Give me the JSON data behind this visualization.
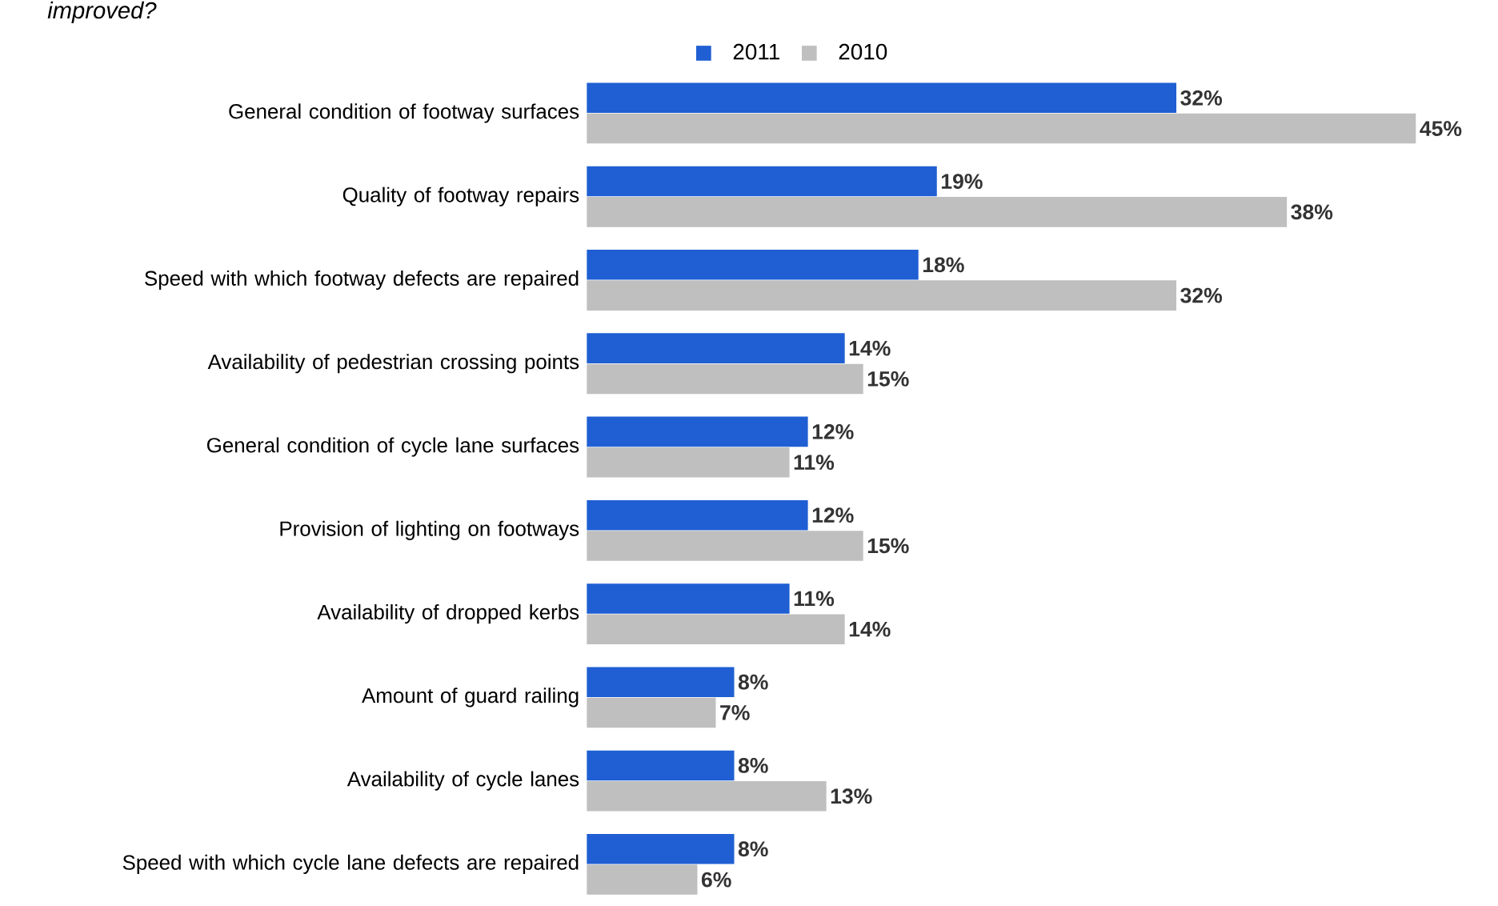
{
  "chart_data": {
    "type": "bar",
    "orientation": "horizontal",
    "title": "improved?",
    "legend": "top",
    "data_labels": true,
    "categories": [
      "General condition of footway surfaces",
      "Quality of footway repairs",
      "Speed with which footway defects are repaired",
      "Availability of pedestrian crossing points",
      "General condition of cycle lane surfaces",
      "Provision of lighting on footways",
      "Availability of dropped kerbs",
      "Amount of guard railing",
      "Availability of cycle lanes",
      "Speed with which cycle lane defects are repaired"
    ],
    "series": [
      {
        "name": "2011",
        "color": "#1f5fd3",
        "values": [
          32,
          19,
          18,
          14,
          12,
          12,
          11,
          8,
          8,
          8
        ],
        "value_labels": [
          "32%",
          "19%",
          "18%",
          "14%",
          "12%",
          "12%",
          "11%",
          "8%",
          "8%",
          "8%"
        ]
      },
      {
        "name": "2010",
        "color": "#bfbfbf",
        "values": [
          45,
          38,
          32,
          15,
          11,
          15,
          14,
          7,
          13,
          6
        ],
        "value_labels": [
          "45%",
          "38%",
          "32%",
          "15%",
          "11%",
          "15%",
          "14%",
          "7%",
          "13%",
          "6%"
        ]
      }
    ]
  }
}
